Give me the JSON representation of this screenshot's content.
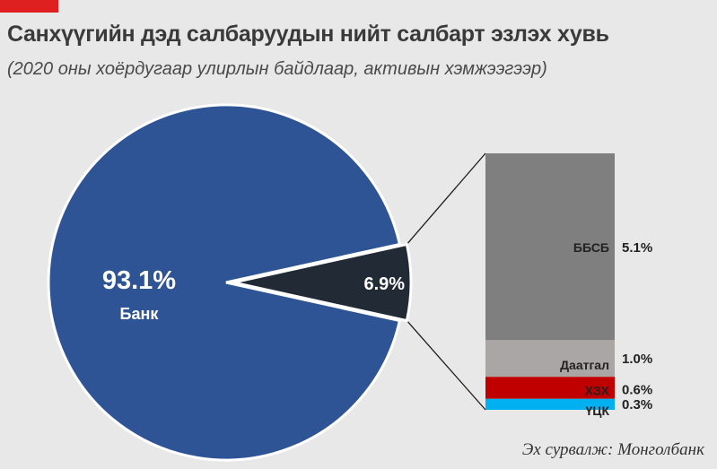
{
  "header": {
    "title": "Санхүүгийн дэд салбаруудын нийт салбарт эзлэх хувь",
    "subtitle": "(2020 оны хоёрдугаар улирлын байдлаар, активын хэмжээгээр)"
  },
  "source": "Эх сурвалж: Монголбанк",
  "colors": {
    "accent": "#e02020",
    "bank": "#2e5496",
    "other": "#222a35",
    "bbsb": "#7f7f7f",
    "daatgal": "#aaa6a5",
    "hzh": "#c00000",
    "uck": "#00b0f0"
  },
  "chart_data": {
    "type": "pie",
    "title": "Санхүүгийн дэд салбаруудын нийт салбарт эзлэх хувь",
    "subtitle": "(2020 оны хоёрдугаар улирлын байдлаар, активын хэмжээгээр)",
    "pie": {
      "slices": [
        {
          "label": "Банк",
          "value": 93.1,
          "value_label": "93.1%"
        },
        {
          "label": "",
          "value": 6.9,
          "value_label": "6.9%"
        }
      ]
    },
    "breakdown": {
      "type": "stacked_bar",
      "segments": [
        {
          "label": "ББСБ",
          "value": 5.1,
          "value_label": "5.1%"
        },
        {
          "label": "Даатгал",
          "value": 1.0,
          "value_label": "1.0%"
        },
        {
          "label": "ХЗХ",
          "value": 0.6,
          "value_label": "0.6%"
        },
        {
          "label": "ҮЦК",
          "value": 0.3,
          "value_label": "0.3%"
        }
      ]
    }
  }
}
